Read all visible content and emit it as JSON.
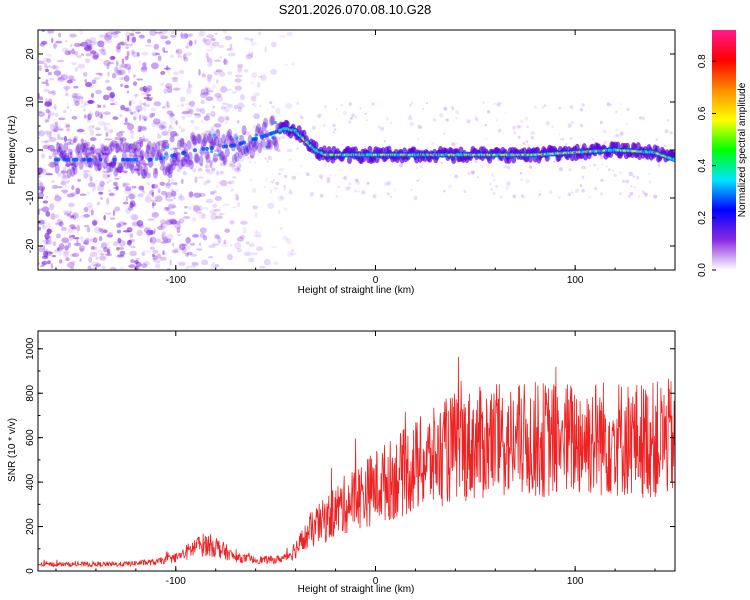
{
  "title": "S201.2026.070.08.10.G28",
  "chart_data": [
    {
      "type": "heatmap",
      "name": "spectrogram",
      "xlabel": "Height of straight line (km)",
      "ylabel": "Frequency (Hz)",
      "xlim": [
        -169,
        150
      ],
      "ylim": [
        -25,
        25
      ],
      "x_ticks": [
        -100,
        0,
        100
      ],
      "x_tick_labels": [
        "-100",
        "0",
        "100"
      ],
      "y_ticks": [
        -20,
        -10,
        0,
        10,
        20
      ],
      "y_tick_labels": [
        "-20",
        "-10",
        "0",
        "10",
        "20"
      ],
      "colorbar": {
        "label": "Normalized spectral amplitude",
        "range": [
          0,
          0.92
        ],
        "ticks": [
          0.0,
          0.2,
          0.4,
          0.6,
          0.8
        ],
        "tick_labels": [
          "0.0",
          "0.2",
          "0.4",
          "0.6",
          "0.8"
        ],
        "colors": [
          "#ffffff",
          "#8a2be2",
          "#0000ff",
          "#00e5ff",
          "#00ff00",
          "#ffff00",
          "#ff8c00",
          "#ff0000",
          "#ff1a8c"
        ]
      },
      "ridge": {
        "x": [
          -169,
          -150,
          -130,
          -110,
          -90,
          -70,
          -55,
          -45,
          -40,
          -35,
          -30,
          -25,
          -20,
          0,
          20,
          40,
          60,
          80,
          100,
          120,
          140,
          150
        ],
        "freq": [
          -2,
          -2,
          -2,
          -2,
          0,
          1,
          3,
          4.5,
          4,
          2,
          0,
          -1,
          -1,
          -1,
          -1,
          -1,
          -1,
          -1,
          -0.5,
          0,
          -0.5,
          -2
        ]
      }
    },
    {
      "type": "line",
      "name": "snr",
      "xlabel": "Height of straight line (km)",
      "ylabel": "SNR (10 * v/v)",
      "xlim": [
        -169,
        150
      ],
      "ylim": [
        0,
        1080
      ],
      "x_ticks": [
        -100,
        0,
        100
      ],
      "x_tick_labels": [
        "-100",
        "0",
        "100"
      ],
      "y_ticks": [
        0,
        200,
        400,
        600,
        800,
        1000
      ],
      "y_tick_labels": [
        "0",
        "200",
        "400",
        "600",
        "800",
        "1000"
      ],
      "series": [
        {
          "name": "SNR",
          "color": "#ee2222",
          "x": [
            -169,
            -150,
            -130,
            -110,
            -100,
            -95,
            -90,
            -85,
            -80,
            -70,
            -60,
            -50,
            -45,
            -40,
            -35,
            -30,
            -25,
            -20,
            -15,
            -10,
            -5,
            0,
            10,
            20,
            30,
            40,
            50,
            60,
            70,
            80,
            90,
            100,
            110,
            120,
            130,
            140,
            150
          ],
          "y": [
            30,
            30,
            30,
            40,
            60,
            80,
            110,
            120,
            110,
            60,
            50,
            50,
            60,
            100,
            150,
            200,
            230,
            270,
            300,
            330,
            350,
            380,
            420,
            470,
            510,
            560,
            570,
            580,
            580,
            590,
            590,
            590,
            600,
            600,
            590,
            590,
            600
          ]
        }
      ]
    }
  ]
}
